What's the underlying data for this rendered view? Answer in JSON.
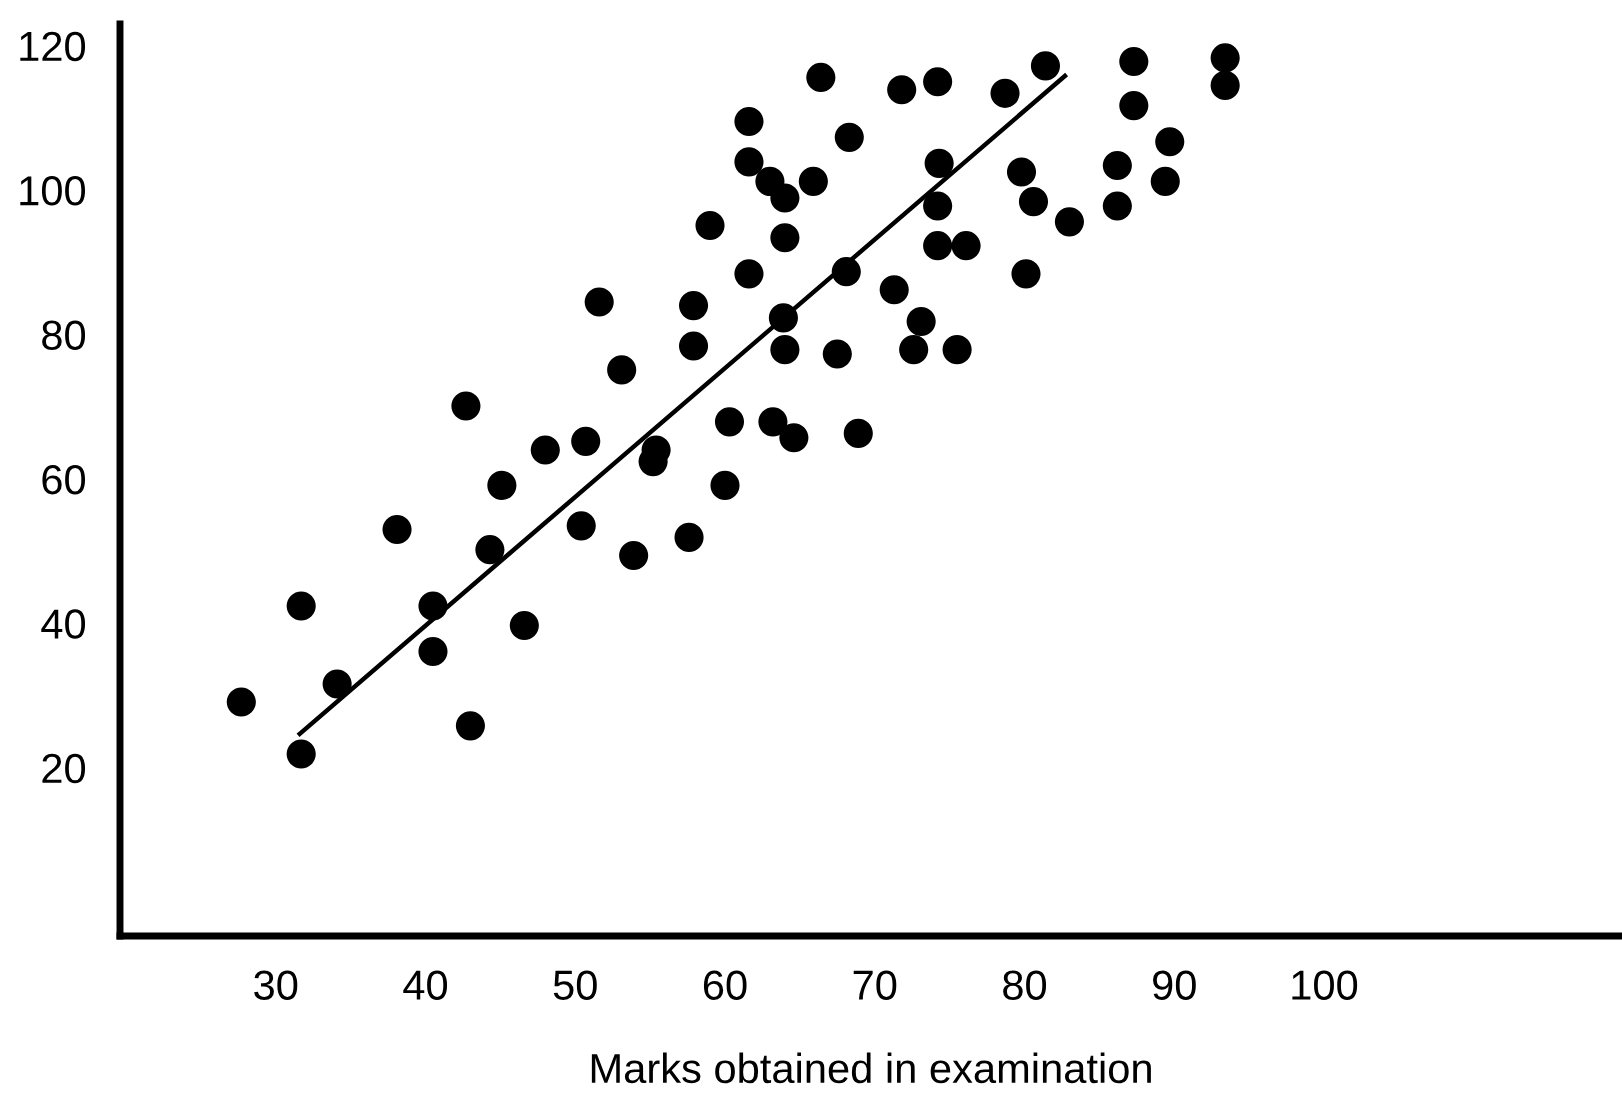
{
  "chart_data": {
    "type": "scatter",
    "xlabel": "Marks obtained in examination",
    "xlim": [
      19.6,
      119.9
    ],
    "ylim": [
      -3.3,
      123
    ],
    "xticks": [
      30,
      40,
      50,
      60,
      70,
      80,
      90,
      100
    ],
    "yticks": [
      20,
      40,
      60,
      80,
      100,
      120
    ],
    "grid": false,
    "marker": "circle",
    "series": [
      {
        "color": "#000000",
        "x": [
          66.4,
          61.6,
          61.6,
          63.0,
          64.0,
          65.9,
          59.0,
          64.0,
          61.6,
          57.9,
          51.6,
          63.9,
          57.9,
          64.0,
          67.5,
          53.1,
          42.7,
          60.3,
          63.2,
          64.6,
          48.0,
          50.7,
          55.4,
          55.2,
          45.1,
          60.0,
          38.1,
          50.4,
          44.3,
          53.9,
          57.6,
          31.7,
          40.5,
          46.6,
          40.5,
          34.1,
          27.7,
          43.0,
          31.7,
          71.8,
          74.2,
          81.4,
          78.7,
          87.3,
          93.4,
          93.4,
          87.3,
          68.3,
          89.7,
          74.3,
          79.8,
          86.2,
          89.4,
          74.2,
          80.6,
          86.2,
          83.0,
          74.2,
          76.1,
          68.1,
          80.1,
          71.3,
          73.1,
          72.6,
          75.5,
          68.9
        ],
        "values": [
          115.6,
          109.5,
          103.9,
          101.2,
          98.9,
          101.2,
          95.1,
          93.4,
          88.4,
          84.0,
          84.5,
          82.3,
          78.4,
          77.9,
          77.3,
          75.1,
          70.1,
          67.9,
          67.9,
          65.7,
          64.0,
          65.2,
          64.0,
          62.4,
          59.1,
          59.1,
          53.0,
          53.5,
          50.2,
          49.4,
          51.9,
          42.4,
          42.4,
          39.7,
          36.1,
          31.6,
          29.1,
          25.8,
          21.9,
          113.9,
          115.0,
          117.2,
          113.4,
          117.8,
          118.3,
          114.5,
          111.7,
          107.3,
          106.7,
          103.7,
          102.5,
          103.4,
          101.2,
          97.8,
          98.4,
          97.8,
          95.6,
          92.3,
          92.3,
          88.7,
          88.4,
          86.2,
          81.8,
          77.9,
          77.9,
          66.3
        ]
      },
      {
        "type": "line",
        "color": "#000000",
        "marker": "none",
        "line_style": "solid",
        "x": [
          31.6,
          82.7
        ],
        "values": [
          24.7,
          115.8
        ]
      }
    ]
  }
}
